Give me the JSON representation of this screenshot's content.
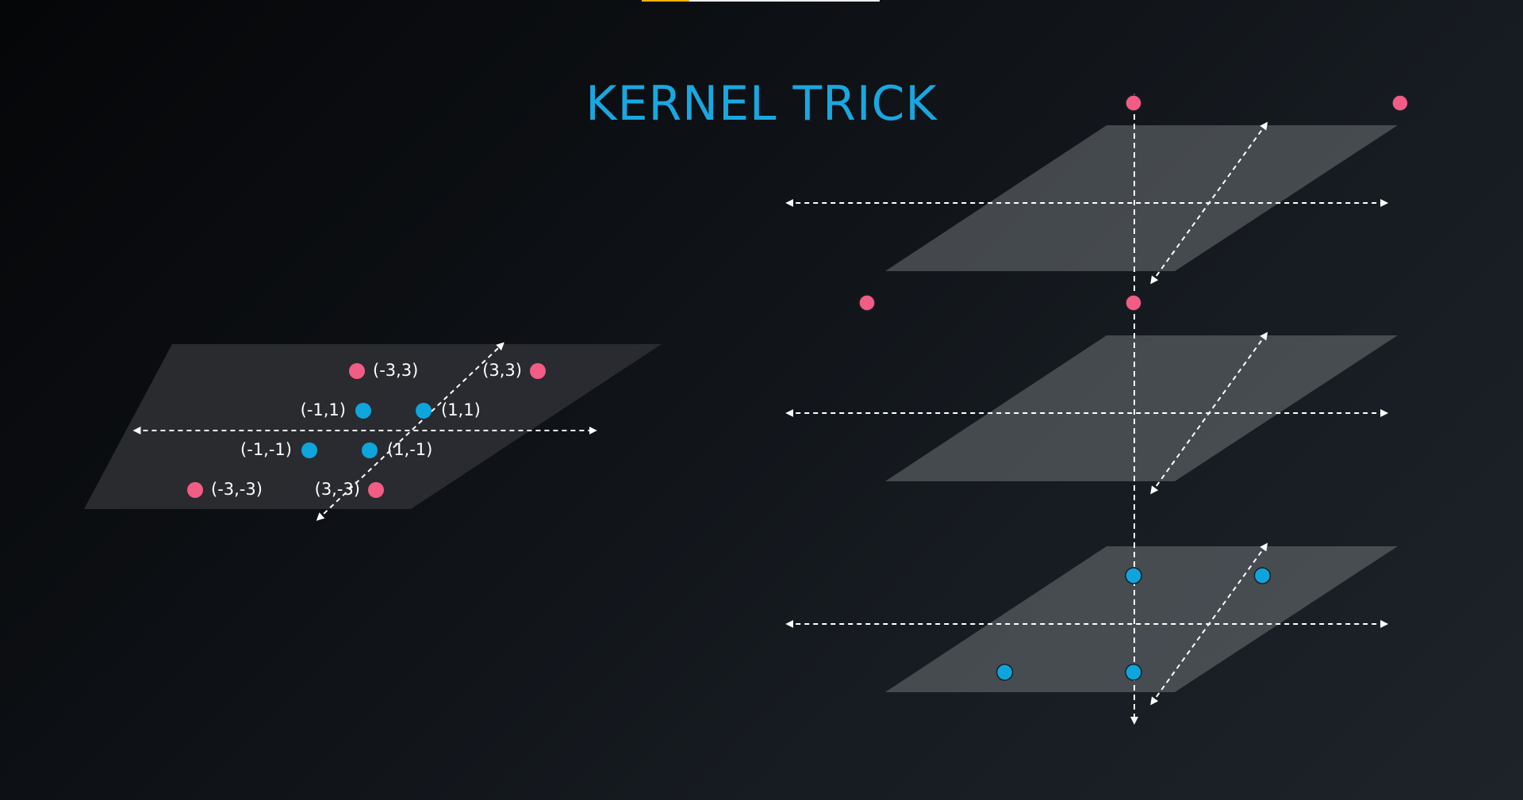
{
  "slide": {
    "title": "KERNEL TRICK",
    "progress": 0.2
  },
  "colors": {
    "title": "#1aa7e0",
    "pink_class": "#f25c85",
    "blue_class": "#0ea5dc",
    "plane_dark": "#2c2f33",
    "plane_light": "#6e7276",
    "axes": "#ffffff"
  },
  "plane_2d": {
    "points": [
      {
        "label": "(-3,3)",
        "x": -3,
        "y": 3,
        "class": "pink"
      },
      {
        "label": "(3,3)",
        "x": 3,
        "y": 3,
        "class": "pink"
      },
      {
        "label": "(-1,1)",
        "x": -1,
        "y": 1,
        "class": "blue"
      },
      {
        "label": "(1,1)",
        "x": 1,
        "y": 1,
        "class": "blue"
      },
      {
        "label": "(-1,-1)",
        "x": -1,
        "y": -1,
        "class": "blue"
      },
      {
        "label": "(1,-1)",
        "x": 1,
        "y": -1,
        "class": "blue"
      },
      {
        "label": "(-3,-3)",
        "x": -3,
        "y": -3,
        "class": "pink"
      },
      {
        "label": "(3,-3)",
        "x": 3,
        "y": -3,
        "class": "pink"
      }
    ]
  },
  "planes_3d": [
    {
      "level": "top",
      "points": [
        {
          "x": -3,
          "y": 3,
          "class": "pink"
        },
        {
          "x": 3,
          "y": 3,
          "class": "pink"
        },
        {
          "x": -3,
          "y": -3,
          "class": "pink"
        },
        {
          "x": 3,
          "y": -3,
          "class": "pink"
        }
      ]
    },
    {
      "level": "middle",
      "points": []
    },
    {
      "level": "bottom",
      "points": [
        {
          "x": -1,
          "y": 1,
          "class": "blue"
        },
        {
          "x": 1,
          "y": 1,
          "class": "blue"
        },
        {
          "x": -1,
          "y": -1,
          "class": "blue"
        },
        {
          "x": 1,
          "y": -1,
          "class": "blue"
        }
      ]
    }
  ]
}
